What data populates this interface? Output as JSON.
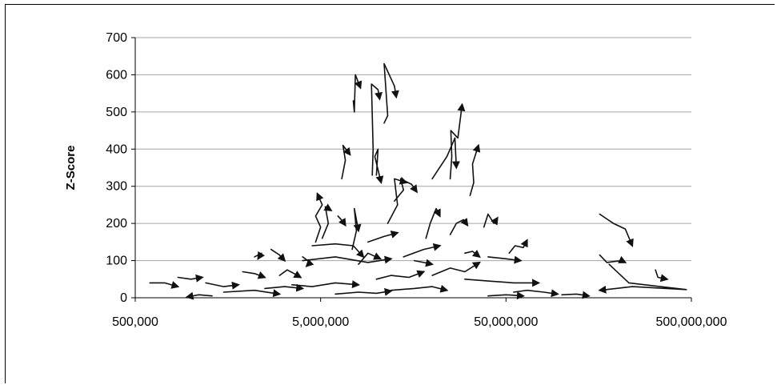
{
  "chart_data": {
    "type": "line",
    "title": "",
    "xlabel": "",
    "ylabel": "Z-Score",
    "x_scale": "log",
    "xlim": [
      500000,
      500000000
    ],
    "ylim": [
      0,
      700
    ],
    "x_ticks": [
      500000,
      5000000,
      50000000,
      500000000
    ],
    "x_tick_labels": [
      "500,000",
      "5,000,000",
      "50,000,000",
      "500,000,000"
    ],
    "y_ticks": [
      0,
      100,
      200,
      300,
      400,
      500,
      600,
      700
    ],
    "y_tick_labels": [
      "0",
      "100",
      "200",
      "300",
      "400",
      "500",
      "600",
      "700"
    ],
    "grid": "horizontal",
    "legend": "none",
    "series_style": "trajectory lines ending in arrowheads",
    "series": [
      {
        "x": [
          7500000,
          7600000,
          7700000,
          8200000
        ],
        "y": [
          530,
          500,
          600,
          565
        ]
      },
      {
        "x": [
          11000000,
          11500000,
          11000000,
          12500000,
          12800000
        ],
        "y": [
          470,
          490,
          630,
          570,
          540
        ]
      },
      {
        "x": [
          9500000,
          9600000,
          9400000,
          10200000,
          10400000
        ],
        "y": [
          330,
          400,
          575,
          560,
          535
        ]
      },
      {
        "x": [
          10000000,
          10200000,
          9800000,
          10600000
        ],
        "y": [
          330,
          400,
          380,
          310
        ]
      },
      {
        "x": [
          25000000,
          25500000,
          25200000,
          27500000,
          29000000
        ],
        "y": [
          320,
          380,
          450,
          430,
          520
        ]
      },
      {
        "x": [
          20000000,
          24000000,
          26500000,
          27000000
        ],
        "y": [
          320,
          380,
          430,
          350
        ]
      },
      {
        "x": [
          32000000,
          33500000,
          33000000,
          35500000
        ],
        "y": [
          275,
          310,
          360,
          410
        ]
      },
      {
        "x": [
          6500000,
          6800000,
          6600000,
          7200000
        ],
        "y": [
          320,
          370,
          410,
          385
        ]
      },
      {
        "x": [
          12500000,
          14000000,
          13500000,
          15500000,
          16500000
        ],
        "y": [
          260,
          290,
          320,
          305,
          285
        ]
      },
      {
        "x": [
          11500000,
          13000000,
          12500000,
          14500000
        ],
        "y": [
          200,
          250,
          320,
          310
        ]
      },
      {
        "x": [
          4700000,
          5000000,
          4700000,
          5100000,
          4800000
        ],
        "y": [
          150,
          190,
          220,
          250,
          280
        ]
      },
      {
        "x": [
          5100000,
          5500000,
          5300000,
          5700000
        ],
        "y": [
          160,
          200,
          245,
          235
        ]
      },
      {
        "x": [
          7400000,
          7800000,
          7600000,
          8000000
        ],
        "y": [
          130,
          180,
          240,
          180
        ]
      },
      {
        "x": [
          6200000,
          6600000,
          6800000
        ],
        "y": [
          220,
          205,
          195
        ]
      },
      {
        "x": [
          18500000,
          19500000,
          21000000,
          22000000
        ],
        "y": [
          160,
          200,
          240,
          220
        ]
      },
      {
        "x": [
          25000000,
          27000000,
          29500000,
          31000000
        ],
        "y": [
          170,
          200,
          210,
          195
        ]
      },
      {
        "x": [
          38000000,
          40000000,
          43000000,
          45000000
        ],
        "y": [
          190,
          225,
          200,
          215
        ]
      },
      {
        "x": [
          52000000,
          56000000,
          62000000,
          65000000
        ],
        "y": [
          120,
          140,
          135,
          155
        ]
      },
      {
        "x": [
          160000000,
          190000000,
          220000000,
          240000000
        ],
        "y": [
          225,
          200,
          185,
          140
        ]
      },
      {
        "x": [
          160000000,
          175000000,
          210000000,
          220000000
        ],
        "y": [
          115,
          95,
          100,
          95
        ]
      },
      {
        "x": [
          180000000,
          230000000,
          340000000,
          470000000,
          240000000,
          160000000
        ],
        "y": [
          90,
          40,
          30,
          22,
          30,
          20
        ]
      },
      {
        "x": [
          320000000,
          330000000,
          370000000
        ],
        "y": [
          75,
          55,
          50
        ]
      },
      {
        "x": [
          600000,
          720000,
          850000
        ],
        "y": [
          40,
          40,
          30
        ]
      },
      {
        "x": [
          850000,
          1000000,
          1150000
        ],
        "y": [
          55,
          50,
          55
        ]
      },
      {
        "x": [
          1200000,
          1500000,
          1800000
        ],
        "y": [
          40,
          30,
          35
        ]
      },
      {
        "x": [
          1900000,
          2200000,
          2500000
        ],
        "y": [
          70,
          65,
          55
        ]
      },
      {
        "x": [
          2200000,
          2400000,
          2300000
        ],
        "y": [
          110,
          120,
          105
        ]
      },
      {
        "x": [
          2700000,
          3000000,
          3200000
        ],
        "y": [
          130,
          115,
          100
        ]
      },
      {
        "x": [
          3000000,
          3300000,
          3600000,
          3900000
        ],
        "y": [
          60,
          75,
          65,
          55
        ]
      },
      {
        "x": [
          1500000,
          2200000,
          3000000
        ],
        "y": [
          15,
          20,
          10
        ]
      },
      {
        "x": [
          1300000,
          1100000,
          950000
        ],
        "y": [
          5,
          8,
          2
        ]
      },
      {
        "x": [
          3500000,
          4500000,
          6000000,
          8000000
        ],
        "y": [
          35,
          30,
          40,
          35
        ]
      },
      {
        "x": [
          4000000,
          6000000,
          9000000,
          12000000
        ],
        "y": [
          100,
          110,
          95,
          105
        ]
      },
      {
        "x": [
          4500000,
          6000000,
          7500000,
          8500000
        ],
        "y": [
          140,
          145,
          140,
          110
        ]
      },
      {
        "x": [
          8000000,
          9000000,
          10500000
        ],
        "y": [
          90,
          120,
          105
        ]
      },
      {
        "x": [
          10000000,
          12000000,
          15000000,
          18000000
        ],
        "y": [
          50,
          60,
          55,
          70
        ]
      },
      {
        "x": [
          12000000,
          16000000,
          20000000,
          24000000
        ],
        "y": [
          20,
          25,
          30,
          20
        ]
      },
      {
        "x": [
          14000000,
          18000000,
          22000000
        ],
        "y": [
          110,
          130,
          140
        ]
      },
      {
        "x": [
          20000000,
          25000000,
          30000000,
          36000000
        ],
        "y": [
          60,
          80,
          70,
          95
        ]
      },
      {
        "x": [
          30000000,
          40000000,
          55000000,
          75000000
        ],
        "y": [
          50,
          45,
          40,
          40
        ]
      },
      {
        "x": [
          40000000,
          50000000,
          60000000
        ],
        "y": [
          110,
          105,
          100
        ]
      },
      {
        "x": [
          55000000,
          65000000,
          80000000,
          95000000
        ],
        "y": [
          15,
          20,
          15,
          10
        ]
      },
      {
        "x": [
          40000000,
          50000000,
          62000000
        ],
        "y": [
          5,
          8,
          5
        ]
      },
      {
        "x": [
          100000000,
          120000000,
          140000000
        ],
        "y": [
          8,
          10,
          5
        ]
      },
      {
        "x": [
          6000000,
          8000000,
          10000000,
          12000000
        ],
        "y": [
          10,
          15,
          12,
          18
        ]
      },
      {
        "x": [
          9000000,
          11000000,
          13000000
        ],
        "y": [
          150,
          165,
          175
        ]
      },
      {
        "x": [
          16000000,
          18000000,
          20000000
        ],
        "y": [
          100,
          95,
          90
        ]
      },
      {
        "x": [
          2500000,
          3200000,
          4000000
        ],
        "y": [
          25,
          30,
          25
        ]
      },
      {
        "x": [
          4000000,
          4400000,
          4200000
        ],
        "y": [
          110,
          95,
          85
        ]
      },
      {
        "x": [
          30000000,
          33000000,
          36000000
        ],
        "y": [
          120,
          125,
          110
        ]
      }
    ]
  }
}
